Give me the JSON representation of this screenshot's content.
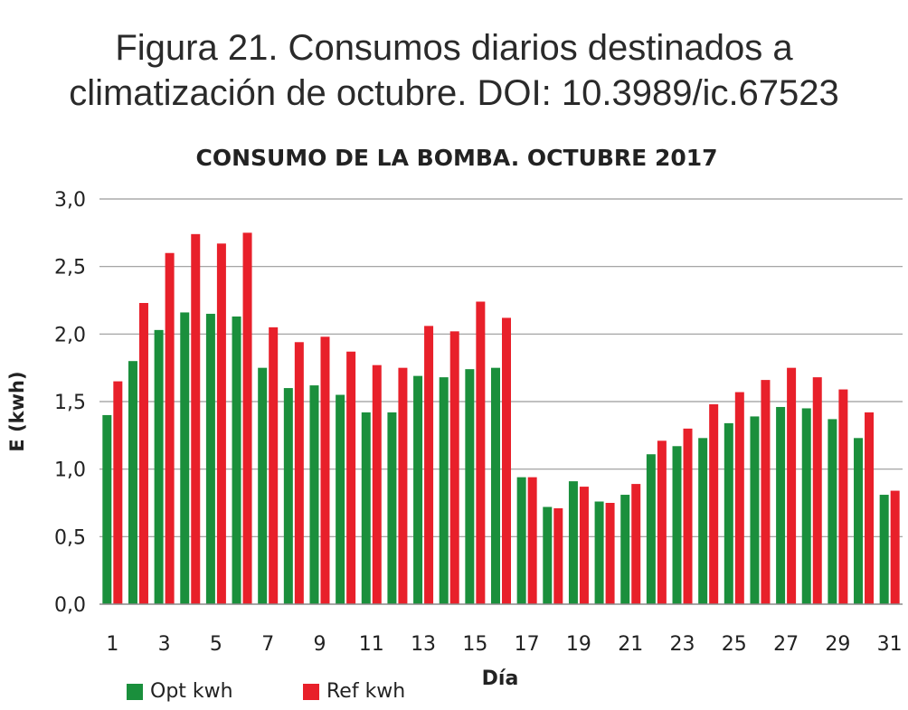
{
  "caption": {
    "line1": "Figura 21. Consumos diarios destinados a",
    "line2": "climatización de octubre. DOI: 10.3989/ic.67523"
  },
  "colors": {
    "opt": "#1a8f3c",
    "ref": "#e8202a",
    "grid": "#9a9a9a",
    "axis": "#8a8a8a"
  },
  "chart_data": {
    "type": "bar",
    "title": "CONSUMO DE LA BOMBA. OCTUBRE 2017",
    "xlabel": "Día",
    "ylabel": "E (kwh)",
    "ylim": [
      0,
      3.0
    ],
    "yticks": [
      "0,0",
      "0,5",
      "1,0",
      "1,5",
      "2,0",
      "2,5",
      "3,0"
    ],
    "x_tick_labels": [
      "1",
      "3",
      "5",
      "7",
      "9",
      "11",
      "13",
      "15",
      "17",
      "19",
      "21",
      "23",
      "25",
      "27",
      "29",
      "31"
    ],
    "grid": true,
    "legend_position": "bottom-left",
    "categories": [
      1,
      2,
      3,
      4,
      5,
      6,
      7,
      8,
      9,
      10,
      11,
      12,
      13,
      14,
      15,
      16,
      17,
      18,
      19,
      20,
      21,
      22,
      23,
      24,
      25,
      26,
      27,
      28,
      29,
      30,
      31
    ],
    "series": [
      {
        "name": "Opt kwh",
        "values": [
          1.4,
          1.8,
          2.03,
          2.16,
          2.15,
          2.13,
          1.75,
          1.6,
          1.62,
          1.55,
          1.42,
          1.42,
          1.69,
          1.68,
          1.74,
          1.75,
          0.94,
          0.72,
          0.91,
          0.76,
          0.81,
          1.11,
          1.17,
          1.23,
          1.34,
          1.39,
          1.46,
          1.45,
          1.37,
          1.23,
          0.81
        ]
      },
      {
        "name": "Ref kwh",
        "values": [
          1.65,
          2.23,
          2.6,
          2.74,
          2.67,
          2.75,
          2.05,
          1.94,
          1.98,
          1.87,
          1.77,
          1.75,
          2.06,
          2.02,
          2.24,
          2.12,
          0.94,
          0.71,
          0.87,
          0.75,
          0.89,
          1.21,
          1.3,
          1.48,
          1.57,
          1.66,
          1.75,
          1.68,
          1.59,
          1.42,
          0.84
        ]
      }
    ]
  }
}
